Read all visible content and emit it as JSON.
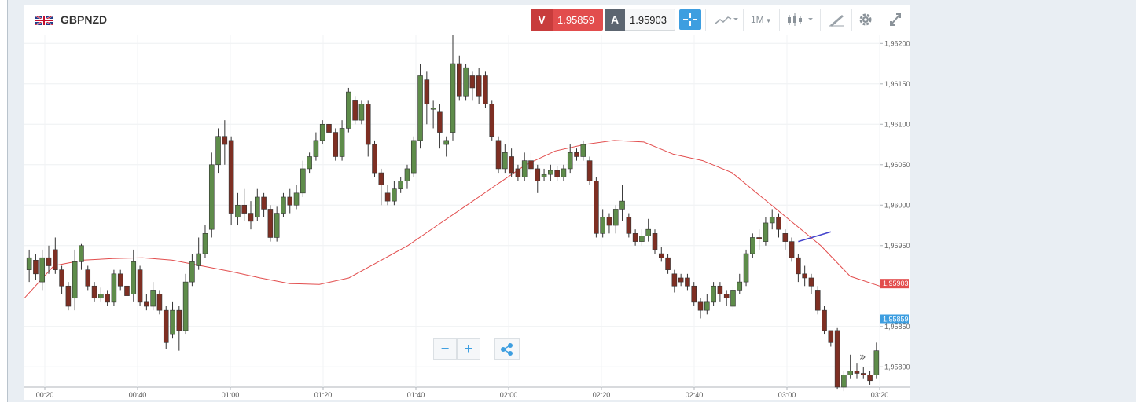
{
  "instrument": {
    "symbol": "GBPNZD"
  },
  "quote": {
    "sell_tag": "V",
    "sell_price": "1.95859",
    "buy_tag": "A",
    "buy_price": "1.95903"
  },
  "toolbar": {
    "timeframe": "1M",
    "icons": [
      "crosshair-icon",
      "chart-type-icon",
      "candlestick-icon",
      "drawing-tool-icon",
      "gear-icon",
      "expand-icon"
    ]
  },
  "colors": {
    "bull": "#5e8c4a",
    "bear": "#7e2f23",
    "ma": "#e24d4d",
    "sell": "#e24d4d",
    "buy_tag": "#5c6570",
    "accent": "#3d9ee0",
    "trendline": "#4444cc"
  },
  "chart_data": {
    "type": "candlestick",
    "y_ticks": [
      "1,96200",
      "1,96150",
      "1,96100",
      "1,96050",
      "1,96000",
      "1,95950",
      "1,95850",
      "1,95800"
    ],
    "ylim": [
      1.95775,
      1.9621
    ],
    "x_ticks": [
      "00:20",
      "00:40",
      "01:00",
      "01:20",
      "01:40",
      "02:00",
      "02:20",
      "02:40",
      "03:00",
      "03:20"
    ],
    "sell_price_label": "1,95859",
    "buy_price_label": "1,95903",
    "grid": true,
    "ma_values": [
      1.95885,
      1.95925,
      1.95932,
      1.95934,
      1.95935,
      1.95932,
      1.95925,
      1.95918,
      1.9591,
      1.95903,
      1.95902,
      1.9591,
      1.9593,
      1.9595,
      1.95975,
      1.96,
      1.96025,
      1.9605,
      1.96067,
      1.96075,
      1.9608,
      1.96078,
      1.96063,
      1.96055,
      1.9604,
      1.9601,
      1.9598,
      1.9595,
      1.95912,
      1.959
    ],
    "trendline": {
      "from": [
        1.95955
      ],
      "to": [
        1.95967
      ]
    },
    "candles_ohlc": [
      [
        1.9592,
        1.95935,
        1.95905,
        1.95945
      ],
      [
        1.95932,
        1.95915,
        1.95908,
        1.9594
      ],
      [
        1.95905,
        1.95935,
        1.95895,
        1.95945
      ],
      [
        1.95935,
        1.95925,
        1.95915,
        1.9595
      ],
      [
        1.95945,
        1.9592,
        1.95915,
        1.9596
      ],
      [
        1.9592,
        1.959,
        1.9589,
        1.95925
      ],
      [
        1.959,
        1.95875,
        1.9587,
        1.95905
      ],
      [
        1.95885,
        1.9593,
        1.9587,
        1.95945
      ],
      [
        1.9593,
        1.9595,
        1.9592,
        1.95952
      ],
      [
        1.9592,
        1.959,
        1.95895,
        1.95925
      ],
      [
        1.959,
        1.95885,
        1.9588,
        1.95905
      ],
      [
        1.95885,
        1.9589,
        1.9588,
        1.95898
      ],
      [
        1.9589,
        1.9588,
        1.95875,
        1.95895
      ],
      [
        1.9588,
        1.95915,
        1.95875,
        1.9592
      ],
      [
        1.95915,
        1.959,
        1.95895,
        1.9592
      ],
      [
        1.959,
        1.95888,
        1.95883,
        1.95905
      ],
      [
        1.9589,
        1.9593,
        1.9588,
        1.95945
      ],
      [
        1.9592,
        1.9588,
        1.95875,
        1.95925
      ],
      [
        1.9588,
        1.95875,
        1.9587,
        1.9589
      ],
      [
        1.95875,
        1.95895,
        1.9587,
        1.95905
      ],
      [
        1.9589,
        1.9587,
        1.95865,
        1.95895
      ],
      [
        1.9587,
        1.9583,
        1.95822,
        1.95875
      ],
      [
        1.9584,
        1.9587,
        1.95835,
        1.9588
      ],
      [
        1.9587,
        1.95845,
        1.9582,
        1.95875
      ],
      [
        1.95845,
        1.95905,
        1.9584,
        1.95915
      ],
      [
        1.95905,
        1.9593,
        1.959,
        1.9594
      ],
      [
        1.95925,
        1.9594,
        1.9592,
        1.9596
      ],
      [
        1.9594,
        1.95965,
        1.95935,
        1.95975
      ],
      [
        1.9597,
        1.9605,
        1.9596,
        1.96065
      ],
      [
        1.9605,
        1.96085,
        1.9604,
        1.96095
      ],
      [
        1.96085,
        1.96075,
        1.9605,
        1.96105
      ],
      [
        1.9608,
        1.9599,
        1.95975,
        1.96085
      ],
      [
        1.95985,
        1.96,
        1.95975,
        1.96015
      ],
      [
        1.96,
        1.9599,
        1.9598,
        1.9602
      ],
      [
        1.9599,
        1.9598,
        1.9597,
        1.96005
      ],
      [
        1.95985,
        1.9601,
        1.9598,
        1.9602
      ],
      [
        1.9601,
        1.95995,
        1.95985,
        1.96015
      ],
      [
        1.95995,
        1.9596,
        1.95955,
        1.96
      ],
      [
        1.9596,
        1.9599,
        1.95955,
        1.95998
      ],
      [
        1.9599,
        1.9601,
        1.95985,
        1.96015
      ],
      [
        1.9601,
        1.96,
        1.9599,
        1.9602
      ],
      [
        1.96,
        1.96015,
        1.95995,
        1.96025
      ],
      [
        1.96015,
        1.96045,
        1.9601,
        1.96055
      ],
      [
        1.96045,
        1.9606,
        1.9604,
        1.96065
      ],
      [
        1.9606,
        1.9608,
        1.96055,
        1.9609
      ],
      [
        1.9608,
        1.961,
        1.96075,
        1.96105
      ],
      [
        1.961,
        1.9609,
        1.9608,
        1.96105
      ],
      [
        1.9609,
        1.9606,
        1.96055,
        1.96095
      ],
      [
        1.9606,
        1.96095,
        1.96055,
        1.96105
      ],
      [
        1.96095,
        1.9614,
        1.9609,
        1.96145
      ],
      [
        1.9613,
        1.96105,
        1.961,
        1.96135
      ],
      [
        1.96105,
        1.96125,
        1.961,
        1.9613
      ],
      [
        1.96125,
        1.96075,
        1.9606,
        1.9613
      ],
      [
        1.96075,
        1.9604,
        1.96035,
        1.9608
      ],
      [
        1.9604,
        1.96025,
        1.96,
        1.96045
      ],
      [
        1.96015,
        1.96005,
        1.96,
        1.96025
      ],
      [
        1.96005,
        1.9602,
        1.96,
        1.9603
      ],
      [
        1.9602,
        1.9603,
        1.96015,
        1.96035
      ],
      [
        1.9603,
        1.96045,
        1.9602,
        1.9605
      ],
      [
        1.9604,
        1.9608,
        1.96035,
        1.96085
      ],
      [
        1.9608,
        1.9616,
        1.9607,
        1.96175
      ],
      [
        1.96155,
        1.96125,
        1.961,
        1.96165
      ],
      [
        1.9612,
        1.9612,
        1.96095,
        1.9613
      ],
      [
        1.96115,
        1.9609,
        1.9607,
        1.96125
      ],
      [
        1.96075,
        1.9608,
        1.9606,
        1.96085
      ],
      [
        1.9609,
        1.96175,
        1.9608,
        1.9621
      ],
      [
        1.96175,
        1.96135,
        1.9613,
        1.96185
      ],
      [
        1.96135,
        1.9617,
        1.9613,
        1.96175
      ],
      [
        1.9616,
        1.96145,
        1.9613,
        1.96165
      ],
      [
        1.9616,
        1.96135,
        1.96125,
        1.9617
      ],
      [
        1.9616,
        1.96125,
        1.9612,
        1.96165
      ],
      [
        1.96125,
        1.96085,
        1.9608,
        1.9613
      ],
      [
        1.9608,
        1.96045,
        1.9604,
        1.96085
      ],
      [
        1.96045,
        1.96065,
        1.9604,
        1.96075
      ],
      [
        1.9606,
        1.9604,
        1.96035,
        1.9607
      ],
      [
        1.96045,
        1.96035,
        1.9603,
        1.9605
      ],
      [
        1.96035,
        1.96055,
        1.9603,
        1.96065
      ],
      [
        1.96055,
        1.96045,
        1.9604,
        1.96065
      ],
      [
        1.96045,
        1.9603,
        1.96015,
        1.9605
      ],
      [
        1.96035,
        1.96038,
        1.9603,
        1.96045
      ],
      [
        1.96038,
        1.96043,
        1.9603,
        1.9605
      ],
      [
        1.96043,
        1.96035,
        1.9603,
        1.96048
      ],
      [
        1.96035,
        1.96045,
        1.9603,
        1.9605
      ],
      [
        1.96045,
        1.96065,
        1.9604,
        1.96075
      ],
      [
        1.96065,
        1.9606,
        1.96055,
        1.9607
      ],
      [
        1.9606,
        1.96075,
        1.96055,
        1.9608
      ],
      [
        1.96055,
        1.9603,
        1.96025,
        1.9606
      ],
      [
        1.9603,
        1.95965,
        1.9596,
        1.96035
      ],
      [
        1.95965,
        1.95985,
        1.9596,
        1.95995
      ],
      [
        1.95985,
        1.95975,
        1.95965,
        1.9599
      ],
      [
        1.95975,
        1.95995,
        1.95965,
        1.96
      ],
      [
        1.95995,
        1.96005,
        1.9598,
        1.96025
      ],
      [
        1.95985,
        1.95965,
        1.9596,
        1.9599
      ],
      [
        1.95965,
        1.95955,
        1.9595,
        1.9597
      ],
      [
        1.95955,
        1.95962,
        1.9595,
        1.9597
      ],
      [
        1.95962,
        1.9597,
        1.95955,
        1.95983
      ],
      [
        1.95965,
        1.95945,
        1.9594,
        1.9597
      ],
      [
        1.9594,
        1.95935,
        1.9593,
        1.95948
      ],
      [
        1.95935,
        1.9592,
        1.95915,
        1.9594
      ],
      [
        1.95915,
        1.959,
        1.95892,
        1.9592
      ],
      [
        1.9591,
        1.95905,
        1.959,
        1.95915
      ],
      [
        1.9591,
        1.959,
        1.95895,
        1.95915
      ],
      [
        1.959,
        1.9588,
        1.95875,
        1.95905
      ],
      [
        1.9588,
        1.9587,
        1.9586,
        1.95885
      ],
      [
        1.9587,
        1.9588,
        1.95865,
        1.9589
      ],
      [
        1.9588,
        1.959,
        1.95875,
        1.95905
      ],
      [
        1.959,
        1.9589,
        1.9588,
        1.95905
      ],
      [
        1.9589,
        1.95885,
        1.95875,
        1.95895
      ],
      [
        1.95875,
        1.95895,
        1.9587,
        1.959
      ],
      [
        1.95895,
        1.95905,
        1.9589,
        1.95915
      ],
      [
        1.95905,
        1.9594,
        1.959,
        1.95945
      ],
      [
        1.9594,
        1.9596,
        1.95935,
        1.95965
      ],
      [
        1.9596,
        1.95958,
        1.95945,
        1.9597
      ],
      [
        1.95955,
        1.95978,
        1.9595,
        1.95985
      ],
      [
        1.95978,
        1.95985,
        1.9597,
        1.95995
      ],
      [
        1.95985,
        1.9597,
        1.9596,
        1.9599
      ],
      [
        1.95965,
        1.95955,
        1.95945,
        1.9597
      ],
      [
        1.95955,
        1.95935,
        1.9593,
        1.9596
      ],
      [
        1.95935,
        1.95915,
        1.95905,
        1.9594
      ],
      [
        1.95915,
        1.9591,
        1.959,
        1.95925
      ],
      [
        1.9591,
        1.959,
        1.9589,
        1.95915
      ],
      [
        1.95895,
        1.9587,
        1.95865,
        1.959
      ],
      [
        1.9587,
        1.95845,
        1.9584,
        1.95875
      ],
      [
        1.95845,
        1.9583,
        1.95825,
        1.95845
      ],
      [
        1.95845,
        1.95775,
        1.95772,
        1.95848
      ],
      [
        1.95775,
        1.9579,
        1.9577,
        1.95795
      ],
      [
        1.9579,
        1.95795,
        1.95785,
        1.95815
      ],
      [
        1.95795,
        1.95792,
        1.95785,
        1.95805
      ],
      [
        1.95792,
        1.9579,
        1.95785,
        1.958
      ],
      [
        1.9579,
        1.95783,
        1.95778,
        1.95795
      ],
      [
        1.9579,
        1.9582,
        1.95785,
        1.9583
      ]
    ]
  }
}
